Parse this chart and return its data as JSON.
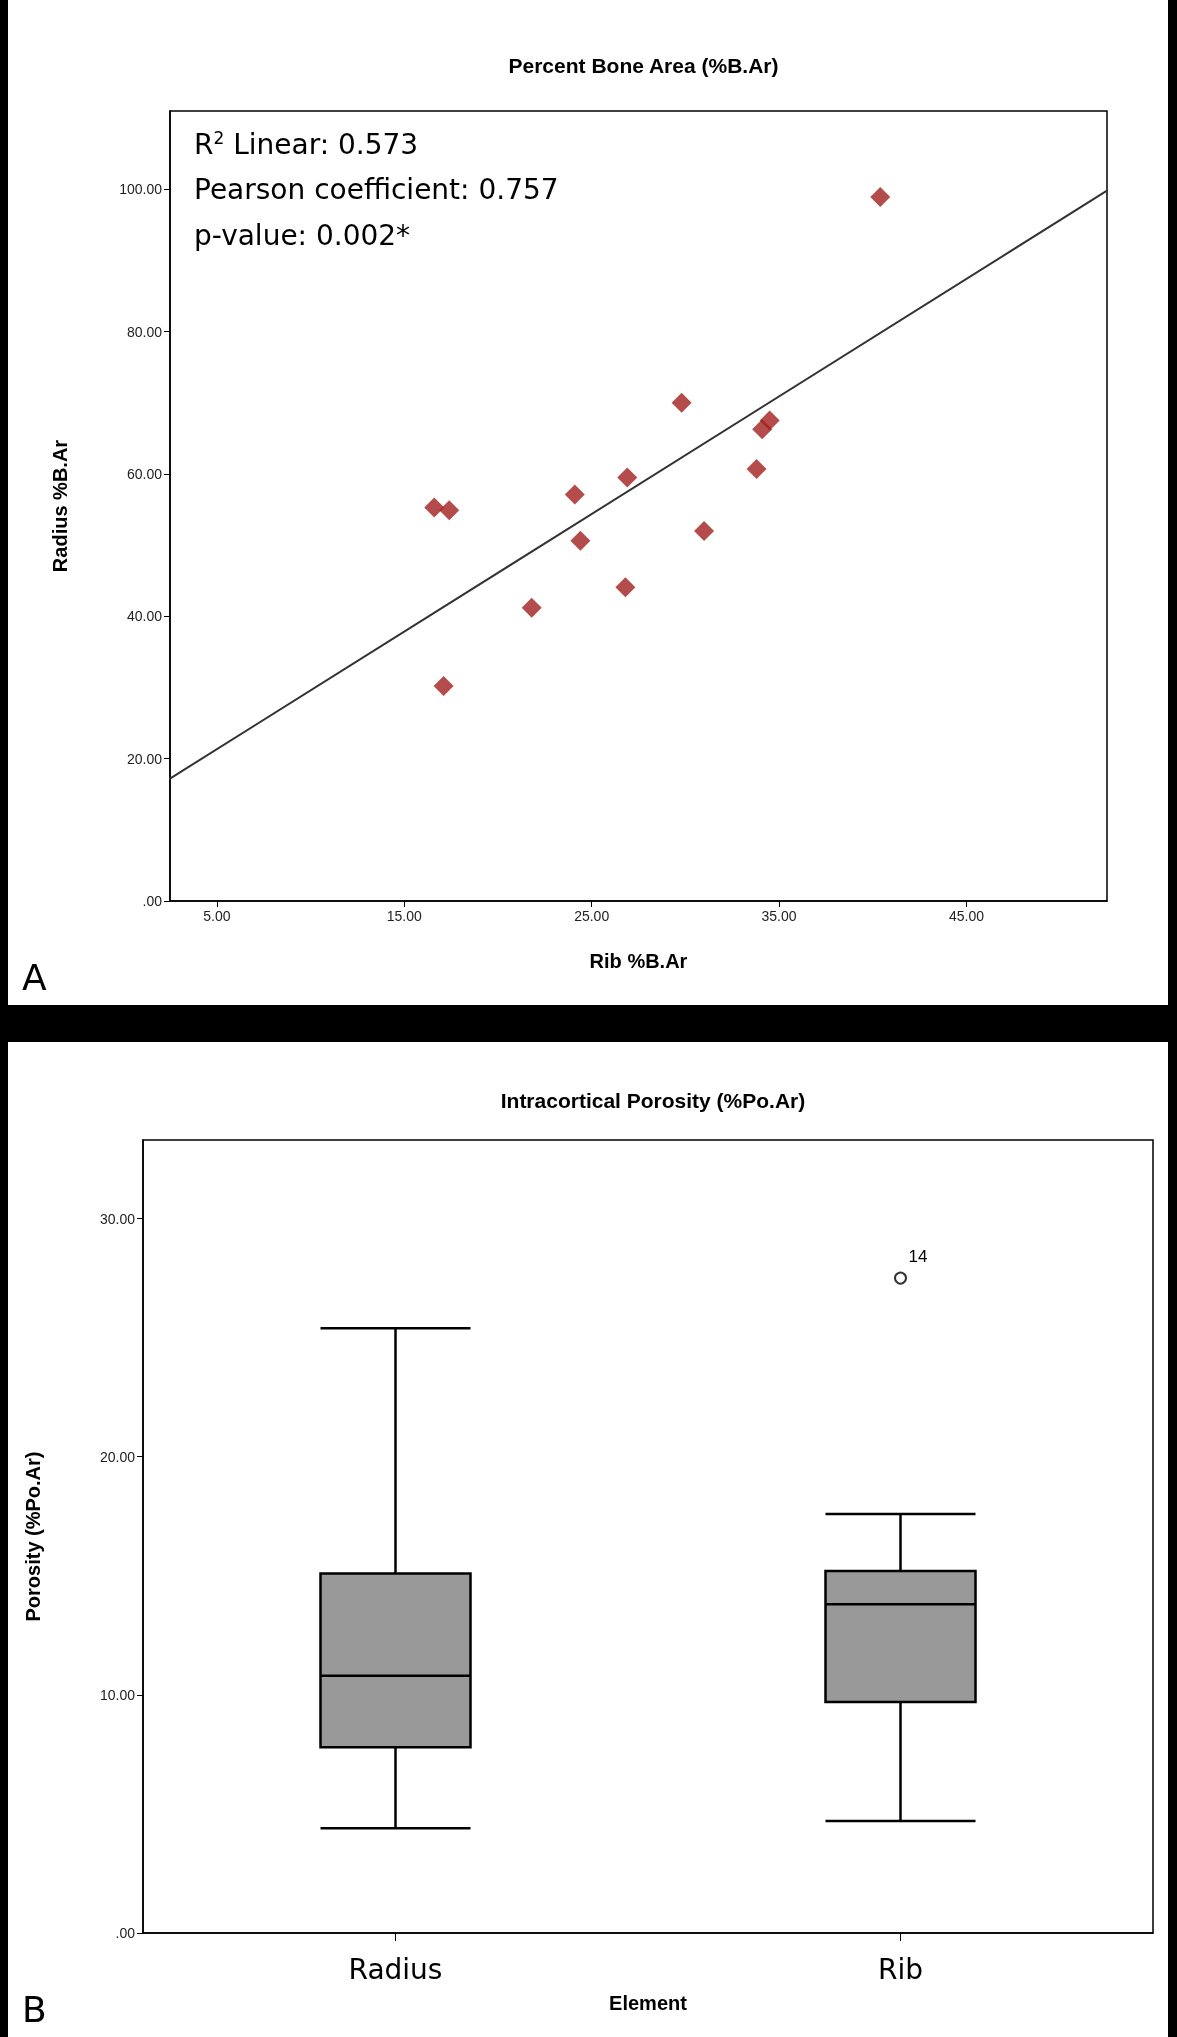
{
  "chart_data": [
    {
      "type": "scatter",
      "title": "Percent Bone Area (%B.Ar)",
      "xlabel": "Rib %B.Ar",
      "ylabel": "Radius %B.Ar",
      "series": [
        {
          "type": "scatter",
          "color": "#a31f1f",
          "marker": "diamond",
          "x": [
            16.6,
            17.4,
            17.1,
            21.8,
            24.1,
            24.4,
            26.9,
            26.8,
            29.8,
            31.0,
            33.8,
            34.1,
            34.5,
            40.4
          ],
          "values": [
            55.3,
            54.9,
            30.2,
            41.2,
            57.1,
            50.6,
            59.5,
            44.1,
            70.0,
            52.0,
            60.7,
            66.3,
            67.5,
            98.9
          ]
        },
        {
          "type": "line",
          "color": "#333333",
          "marker": "none",
          "x": [
            2.5,
            52.5
          ],
          "values": [
            17.2,
            99.8
          ]
        }
      ],
      "xlim": [
        2.5,
        52.5
      ],
      "xticks": [
        {
          "value": 5,
          "label": "5.00"
        },
        {
          "value": 15,
          "label": "15.00"
        },
        {
          "value": 25,
          "label": "25.00"
        },
        {
          "value": 35,
          "label": "35.00"
        },
        {
          "value": 45,
          "label": "45.00"
        }
      ],
      "ylim": [
        0,
        111
      ],
      "yticks": [
        {
          "value": 0,
          "label": ".00"
        },
        {
          "value": 20,
          "label": "20.00"
        },
        {
          "value": 40,
          "label": "40.00"
        },
        {
          "value": 60,
          "label": "60.00"
        },
        {
          "value": 80,
          "label": "80.00"
        },
        {
          "value": 100,
          "label": "100.00"
        }
      ],
      "grid": false,
      "annotations": [
        "R$^{2}$ Linear: 0.573",
        "Pearson coefficient: 0.757",
        "p-value: 0.002*",
        "A"
      ]
    },
    {
      "type": "box",
      "title": "Intracortical Porosity (%Po.Ar)",
      "xlabel": "Element",
      "ylabel": "Porosity (%Po.Ar)",
      "categories": [
        "Radius",
        "Rib"
      ],
      "series": [
        {
          "color": "#999999",
          "boxes": [
            {
              "low": 4.4,
              "q1": 7.8,
              "median": 10.8,
              "q3": 15.1,
              "high": 25.4
            },
            {
              "low": 4.7,
              "q1": 9.7,
              "median": 13.8,
              "q3": 15.2,
              "high": 17.6,
              "outliers": [
                27.5
              ]
            }
          ]
        }
      ],
      "ylim": [
        0,
        33.3
      ],
      "yticks": [
        {
          "value": 0,
          "label": ".00"
        },
        {
          "value": 10,
          "label": "10.00"
        },
        {
          "value": 20,
          "label": "20.00"
        },
        {
          "value": 30,
          "label": "30.00"
        }
      ],
      "grid": false,
      "annotations": [
        "14",
        "B"
      ]
    }
  ]
}
